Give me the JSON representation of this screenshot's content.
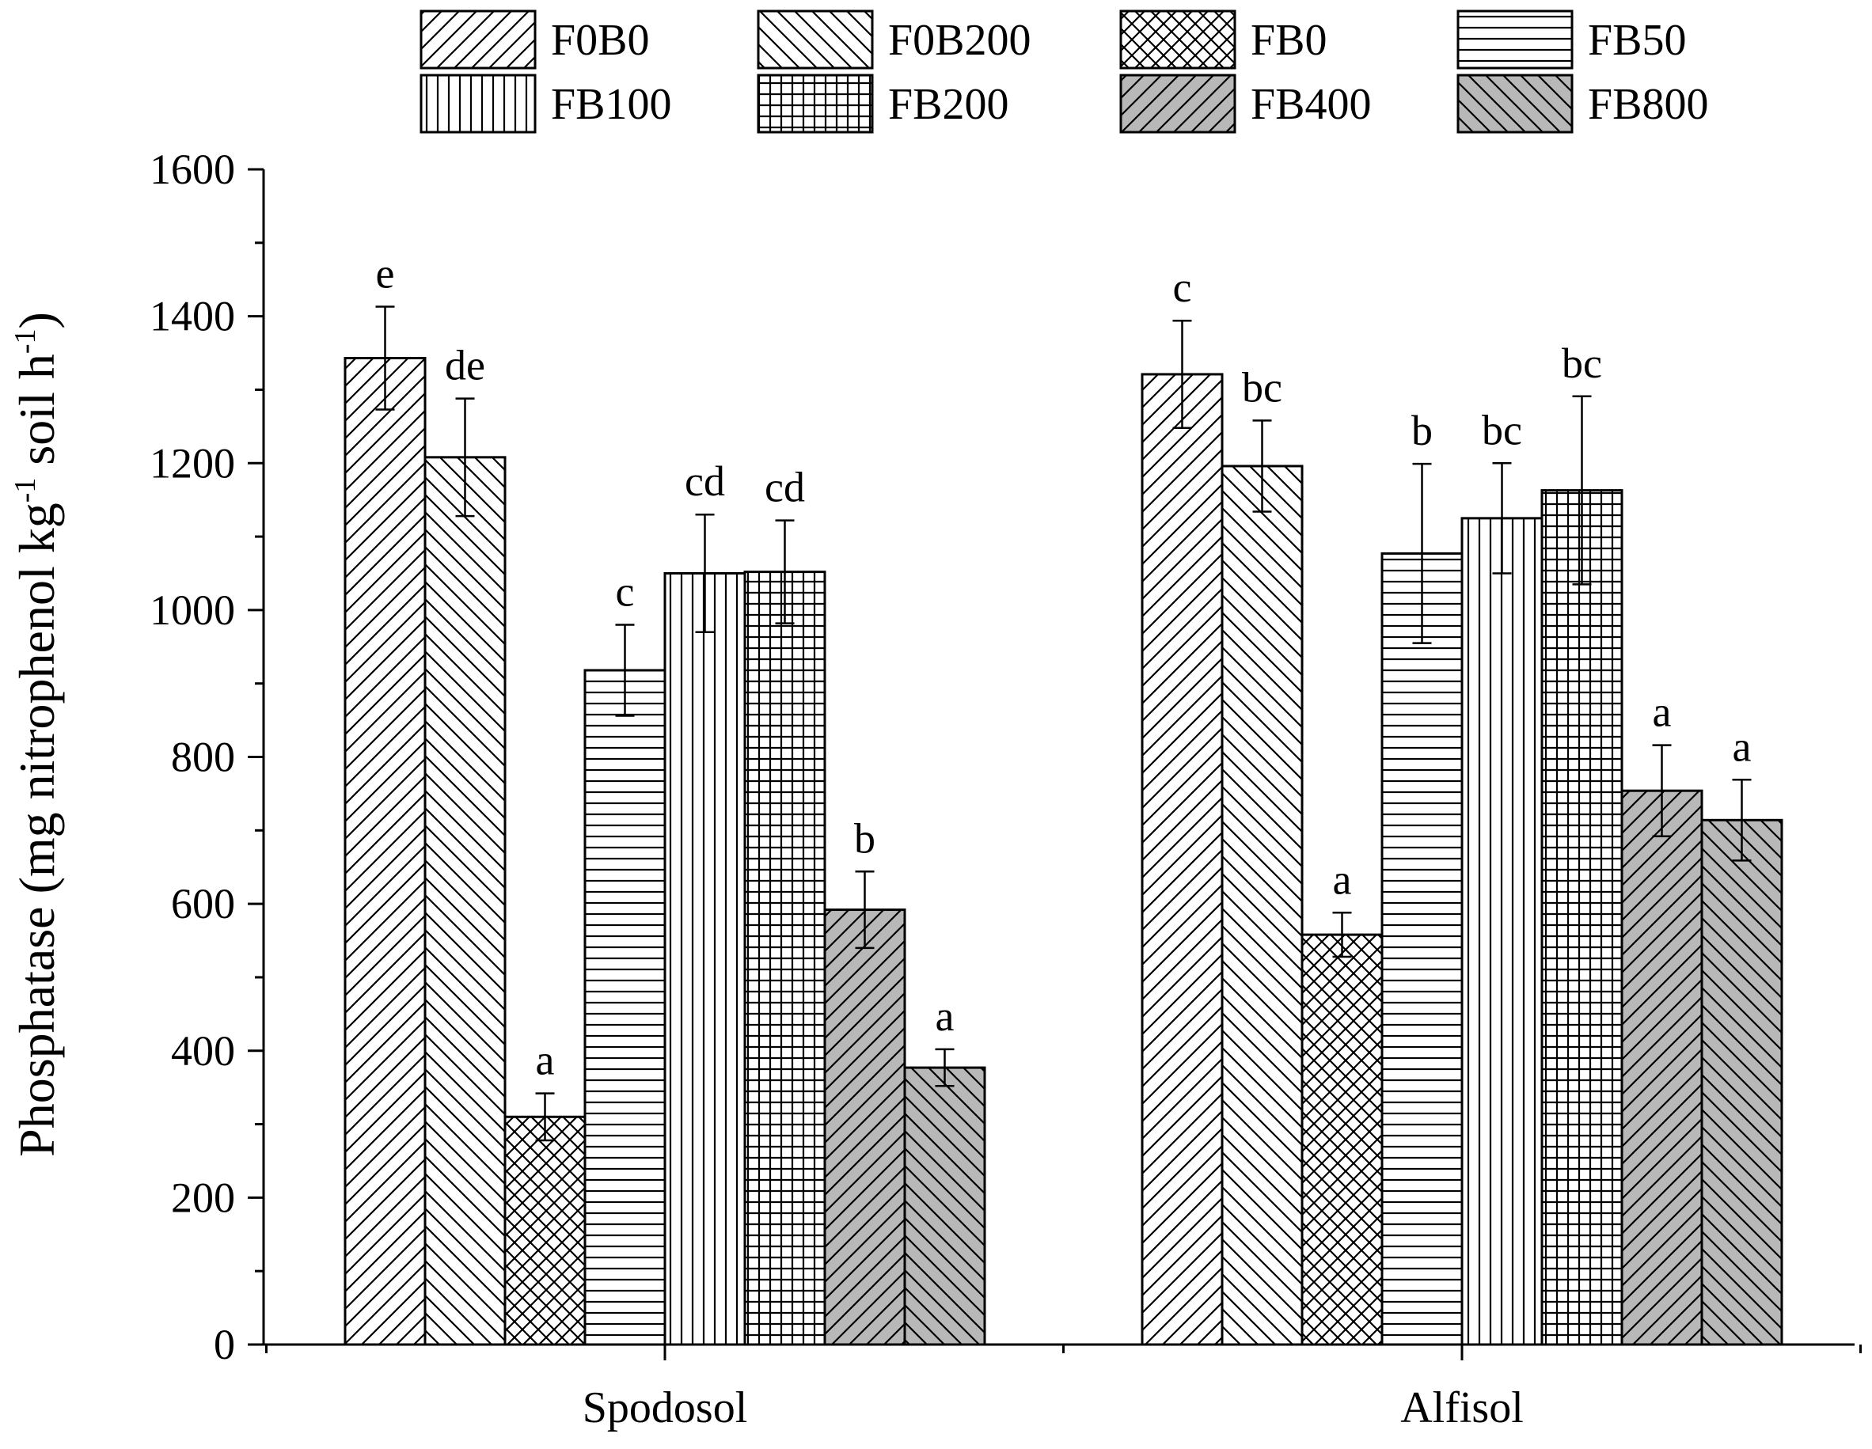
{
  "chart_data": {
    "type": "bar",
    "title": "",
    "xlabel": "",
    "ylabel": {
      "prefix": "Phosphatase (mg nitrophenol kg",
      "sup1": "-1",
      "middle": " soil h",
      "sup2": "-1",
      "suffix": ")"
    },
    "ylim": [
      0,
      1600
    ],
    "yticks": [
      "0",
      "200",
      "400",
      "600",
      "800",
      "1000",
      "1200",
      "1400",
      "1600"
    ],
    "categories": [
      "Spodosol",
      "Alfisol"
    ],
    "series": [
      {
        "name": "F0B0",
        "pattern": "diag-up",
        "values": [
          1343,
          1321
        ],
        "errors": [
          70,
          73
        ],
        "letters": [
          "e",
          "c"
        ]
      },
      {
        "name": "F0B200",
        "pattern": "diag-down",
        "values": [
          1208,
          1196
        ],
        "errors": [
          80,
          62
        ],
        "letters": [
          "de",
          "bc"
        ]
      },
      {
        "name": "FB0",
        "pattern": "cross",
        "values": [
          310,
          558
        ],
        "errors": [
          32,
          30
        ],
        "letters": [
          "a",
          "a"
        ]
      },
      {
        "name": "FB50",
        "pattern": "horiz",
        "values": [
          918,
          1077
        ],
        "errors": [
          62,
          122
        ],
        "letters": [
          "c",
          "b"
        ]
      },
      {
        "name": "FB100",
        "pattern": "vert",
        "values": [
          1050,
          1125
        ],
        "errors": [
          80,
          75
        ],
        "letters": [
          "cd",
          "bc"
        ]
      },
      {
        "name": "FB200",
        "pattern": "grid",
        "values": [
          1052,
          1163
        ],
        "errors": [
          70,
          128
        ],
        "letters": [
          "cd",
          "bc"
        ]
      },
      {
        "name": "FB400",
        "pattern": "gray-up",
        "values": [
          592,
          754
        ],
        "errors": [
          52,
          62
        ],
        "letters": [
          "b",
          "a"
        ]
      },
      {
        "name": "FB800",
        "pattern": "gray-down",
        "values": [
          377,
          714
        ],
        "errors": [
          25,
          55
        ],
        "letters": [
          "a",
          "a"
        ]
      }
    ],
    "legend": {
      "position": "top",
      "columns": 4
    },
    "grid": false,
    "colors": {
      "gray_fill": "#b8b8b8",
      "line": "#000000",
      "background": "#ffffff"
    }
  }
}
